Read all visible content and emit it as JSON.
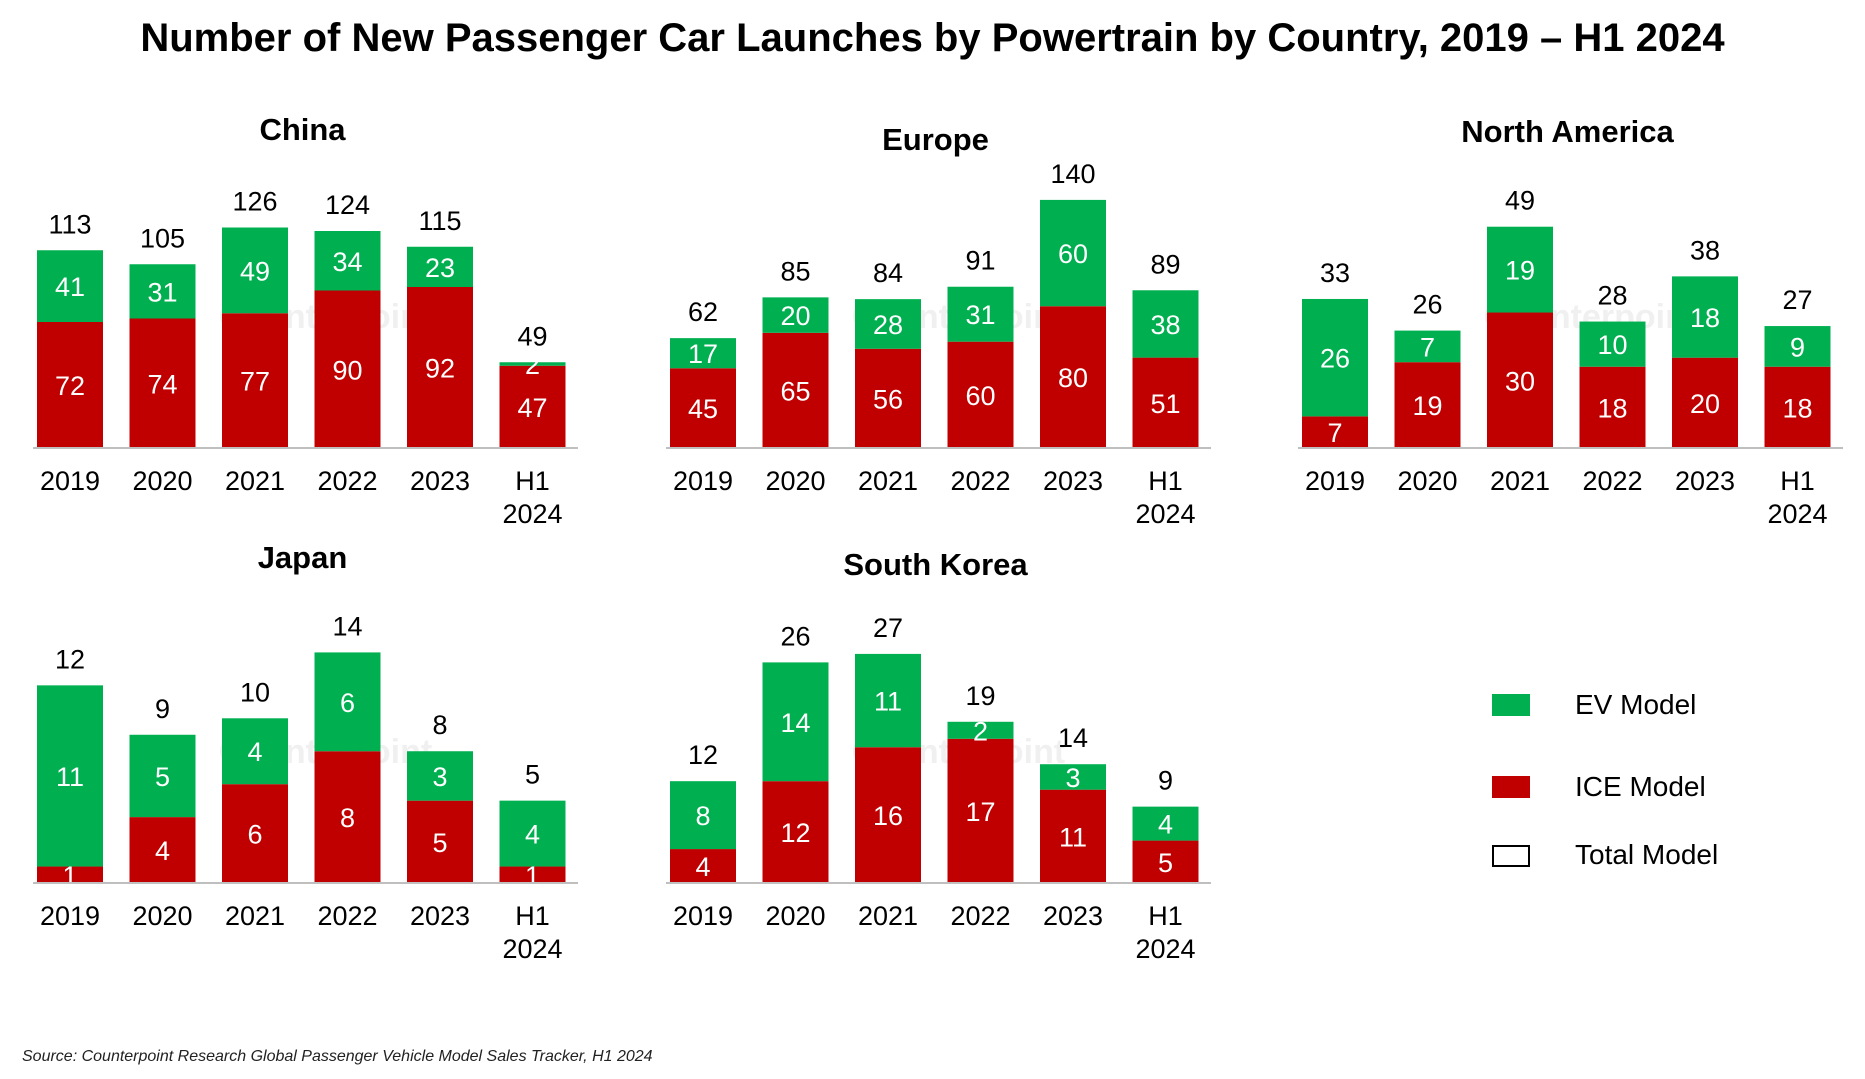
{
  "title": "Number of New Passenger Car Launches by Powertrain by Country, 2019 – H1 2024",
  "source": "Source: Counterpoint Research Global Passenger Vehicle Model Sales Tracker, H1 2024",
  "watermark": "Counterpoint",
  "colors": {
    "ev": "#00b050",
    "ice": "#c00000",
    "axis": "#bfbfbf"
  },
  "legend": [
    {
      "key": "ev",
      "label": "EV Model"
    },
    {
      "key": "ice",
      "label": "ICE Model"
    },
    {
      "key": "total",
      "label": "Total Model"
    }
  ],
  "chart_data": [
    {
      "type": "bar",
      "stacked": true,
      "title": "China",
      "categories": [
        "2019",
        "2020",
        "2021",
        "2022",
        "2023",
        "H1 2024"
      ],
      "series": [
        {
          "name": "ICE Model",
          "values": [
            72,
            74,
            77,
            90,
            92,
            47
          ]
        },
        {
          "name": "EV Model",
          "values": [
            41,
            31,
            49,
            34,
            23,
            2
          ]
        }
      ],
      "totals": [
        113,
        105,
        126,
        124,
        115,
        49
      ],
      "ylim": [
        0,
        160
      ],
      "grid": false
    },
    {
      "type": "bar",
      "stacked": true,
      "title": "Europe",
      "categories": [
        "2019",
        "2020",
        "2021",
        "2022",
        "2023",
        "H1 2024"
      ],
      "series": [
        {
          "name": "ICE Model",
          "values": [
            45,
            65,
            56,
            60,
            80,
            51
          ]
        },
        {
          "name": "EV Model",
          "values": [
            17,
            20,
            28,
            31,
            60,
            38
          ]
        }
      ],
      "totals": [
        62,
        85,
        84,
        91,
        140,
        89
      ],
      "ylim": [
        0,
        158
      ],
      "grid": false
    },
    {
      "type": "bar",
      "stacked": true,
      "title": "North America",
      "categories": [
        "2019",
        "2020",
        "2021",
        "2022",
        "2023",
        "H1 2024"
      ],
      "series": [
        {
          "name": "ICE Model",
          "values": [
            7,
            19,
            30,
            18,
            20,
            18
          ]
        },
        {
          "name": "EV Model",
          "values": [
            26,
            7,
            19,
            10,
            18,
            9
          ]
        }
      ],
      "totals": [
        33,
        26,
        49,
        28,
        38,
        27
      ],
      "ylim": [
        0,
        62
      ],
      "grid": false
    },
    {
      "type": "bar",
      "stacked": true,
      "title": "Japan",
      "categories": [
        "2019",
        "2020",
        "2021",
        "2022",
        "2023",
        "H1 2024"
      ],
      "series": [
        {
          "name": "ICE Model",
          "values": [
            1,
            4,
            6,
            8,
            5,
            1
          ]
        },
        {
          "name": "EV Model",
          "values": [
            11,
            5,
            4,
            6,
            3,
            4
          ]
        }
      ],
      "totals": [
        12,
        9,
        10,
        14,
        8,
        5
      ],
      "ylim": [
        0,
        17
      ],
      "grid": false
    },
    {
      "type": "bar",
      "stacked": true,
      "title": "South Korea",
      "categories": [
        "2019",
        "2020",
        "2021",
        "2022",
        "2023",
        "H1 2024"
      ],
      "series": [
        {
          "name": "ICE Model",
          "values": [
            4,
            12,
            16,
            17,
            11,
            5
          ]
        },
        {
          "name": "EV Model",
          "values": [
            8,
            14,
            11,
            2,
            3,
            4
          ]
        }
      ],
      "totals": [
        12,
        26,
        27,
        19,
        14,
        9
      ],
      "ylim": [
        0,
        33
      ],
      "grid": false
    }
  ]
}
